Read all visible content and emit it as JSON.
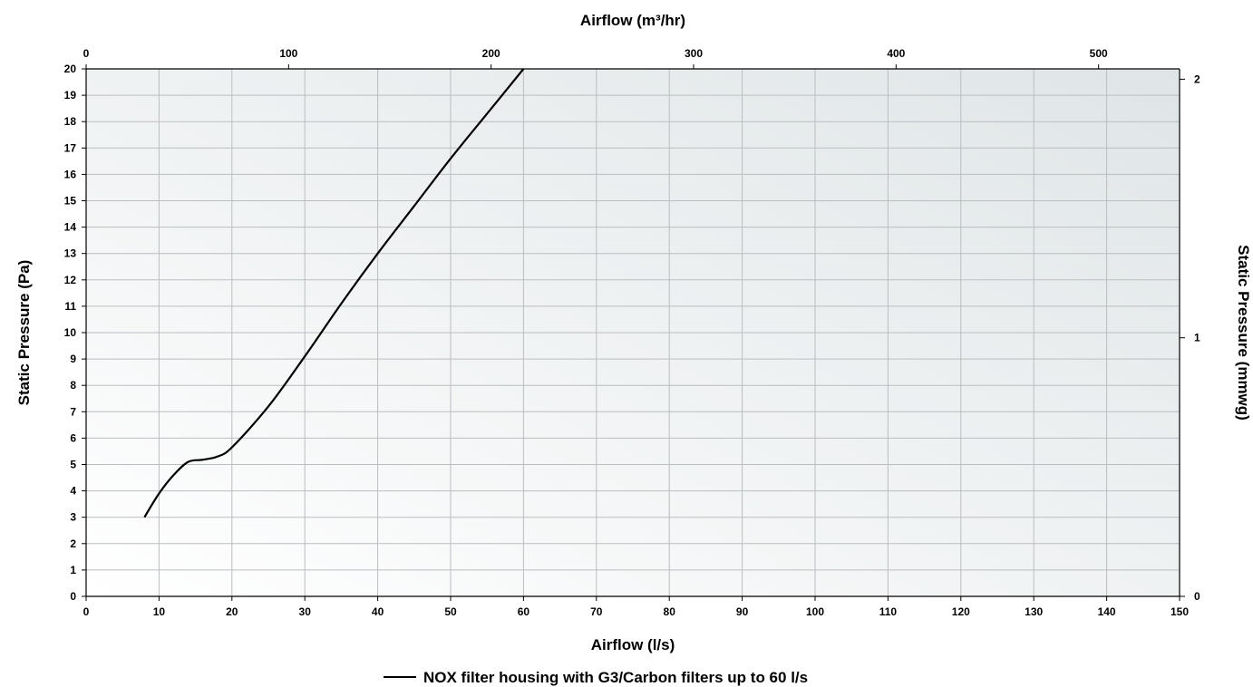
{
  "chart_data": {
    "type": "line",
    "xlabel": "Airflow (l/s)",
    "x2label": "Airflow (m³/hr)",
    "ylabel": "Static Pressure (Pa)",
    "y2label": "Static Pressure (mmwg)",
    "xlim": [
      0,
      150
    ],
    "ylim": [
      0,
      20
    ],
    "x2lim": [
      0,
      540
    ],
    "y2lim": [
      0,
      2.04
    ],
    "x_ticks": [
      0,
      10,
      20,
      30,
      40,
      50,
      60,
      70,
      80,
      90,
      100,
      110,
      120,
      130,
      140,
      150
    ],
    "y_ticks": [
      0,
      1,
      2,
      3,
      4,
      5,
      6,
      7,
      8,
      9,
      10,
      11,
      12,
      13,
      14,
      15,
      16,
      17,
      18,
      19,
      20
    ],
    "x2_ticks": [
      0,
      100,
      200,
      300,
      400,
      500
    ],
    "y2_ticks": [
      0,
      1,
      2
    ],
    "grid": true,
    "legend_position": "bottom-center",
    "series": [
      {
        "name": "NOX filter housing with G3/Carbon filters up to 60 l/s",
        "color": "#000000",
        "x": [
          8,
          10,
          12,
          14,
          16,
          18,
          20,
          25,
          30,
          35,
          40,
          45,
          50,
          55,
          60
        ],
        "y": [
          3.0,
          3.9,
          4.6,
          5.1,
          5.18,
          5.3,
          5.65,
          7.2,
          9.1,
          11.1,
          13.0,
          14.8,
          16.6,
          18.3,
          20.0
        ]
      }
    ]
  }
}
